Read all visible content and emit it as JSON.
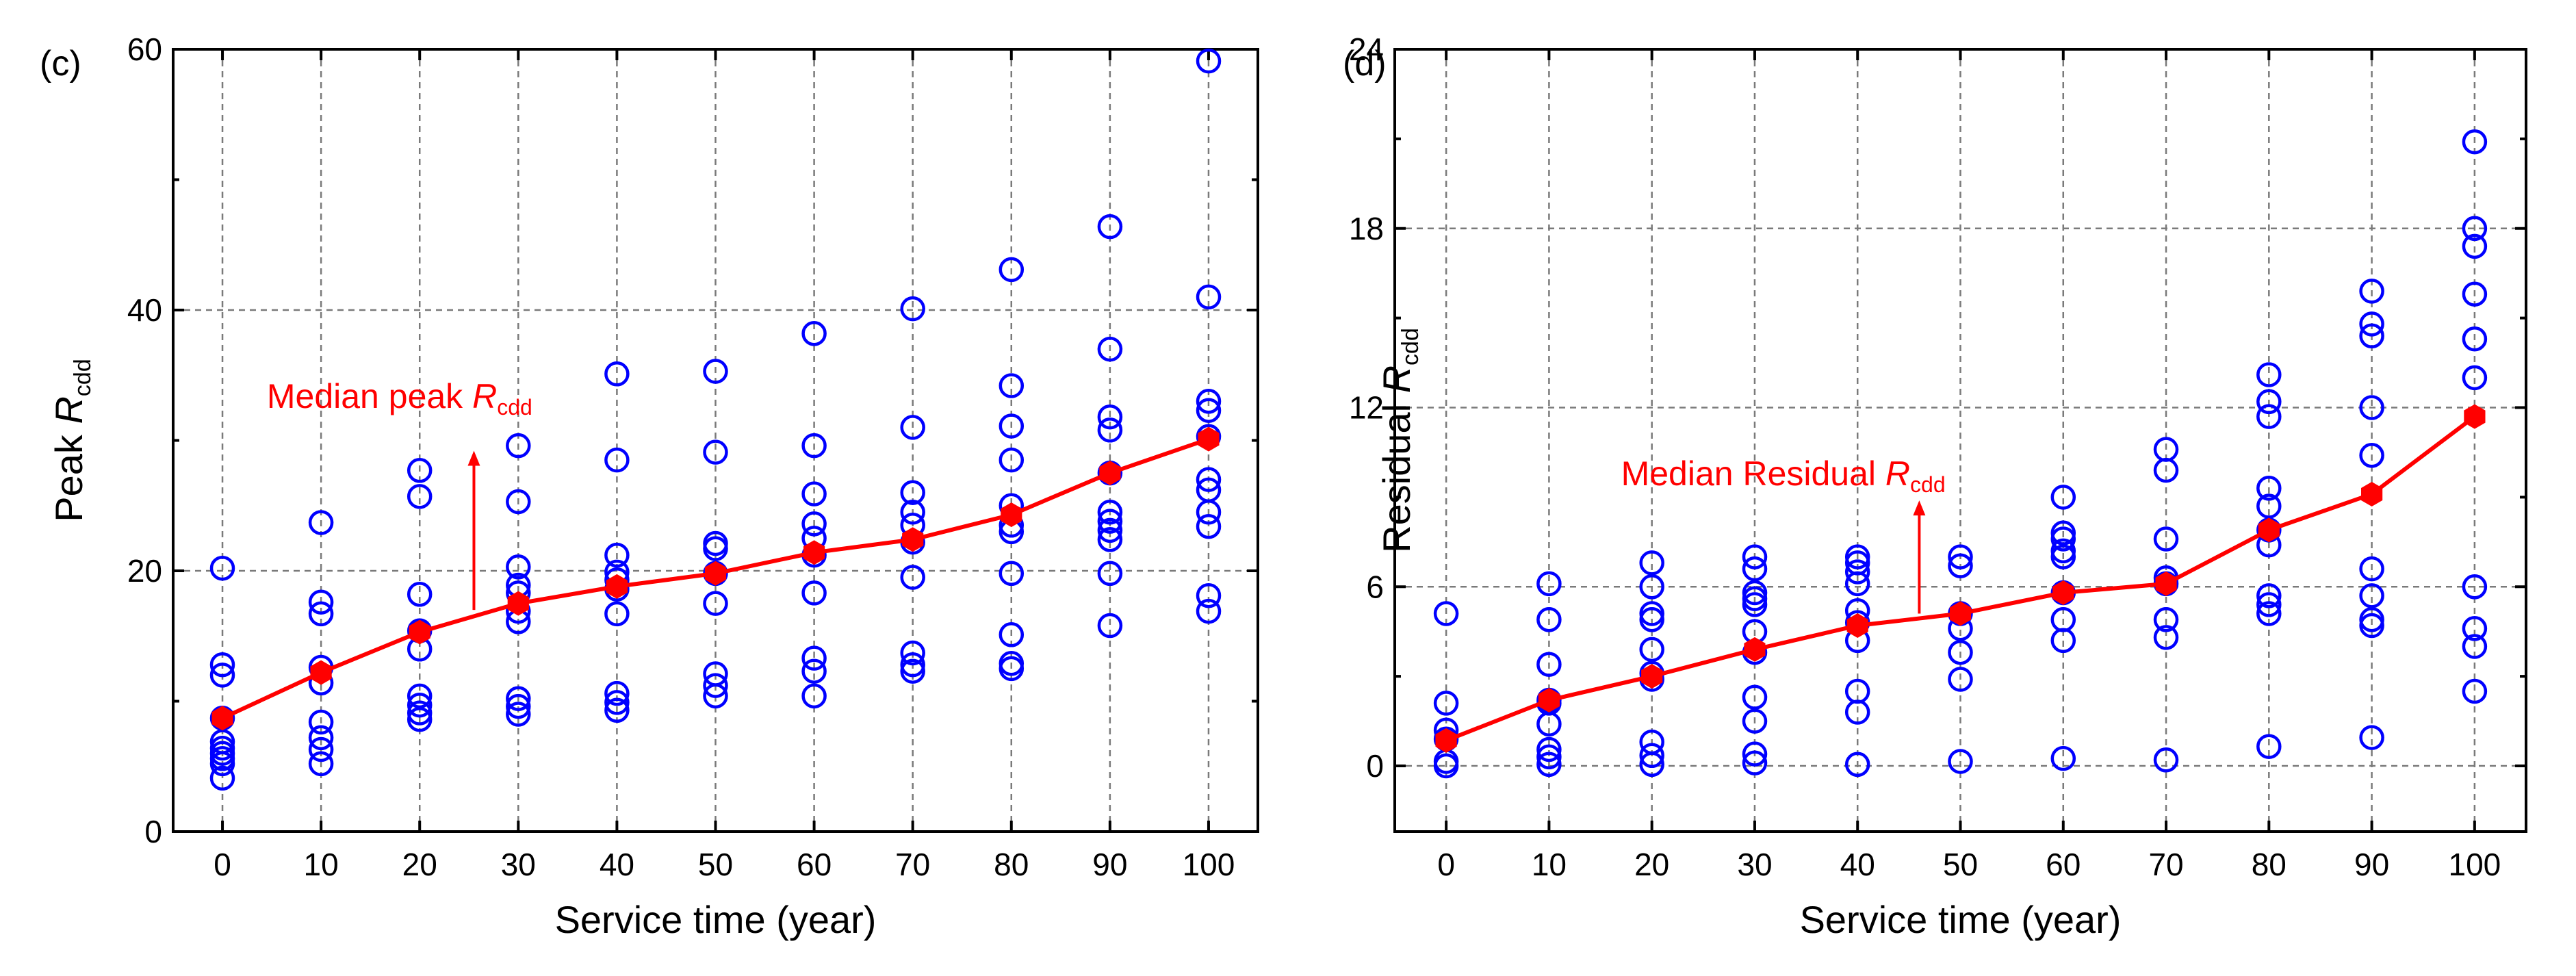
{
  "chart_data": [
    {
      "type": "scatter",
      "panel_label": "(c)",
      "xlabel": "Service time (year)",
      "ylabel": "Peak R",
      "ylabel_sub": "cdd",
      "xlim": [
        -5,
        105
      ],
      "ylim": [
        0,
        60
      ],
      "xticks": [
        0,
        10,
        20,
        30,
        40,
        50,
        60,
        70,
        80,
        90,
        100
      ],
      "yticks": [
        0,
        20,
        40,
        60
      ],
      "grid": true,
      "annotation": {
        "text": "Median peak R",
        "sub": "cdd",
        "x": 4.5,
        "y": 32.5,
        "arrow_from": [
          25.5,
          17.0
        ],
        "arrow_to": [
          25.5,
          29.0
        ]
      },
      "series": [
        {
          "kind": "scatter",
          "marker": "open-circle",
          "color": "#0000ff",
          "points": [
            [
              0,
              4.1
            ],
            [
              0,
              5.2
            ],
            [
              0,
              5.6
            ],
            [
              0,
              6.0
            ],
            [
              0,
              6.4
            ],
            [
              0,
              6.9
            ],
            [
              0,
              8.7
            ],
            [
              0,
              12.0
            ],
            [
              0,
              12.8
            ],
            [
              0,
              20.2
            ],
            [
              10,
              5.2
            ],
            [
              10,
              6.3
            ],
            [
              10,
              7.2
            ],
            [
              10,
              8.4
            ],
            [
              10,
              11.4
            ],
            [
              10,
              12.6
            ],
            [
              10,
              16.7
            ],
            [
              10,
              17.6
            ],
            [
              10,
              23.7
            ],
            [
              20,
              8.6
            ],
            [
              20,
              9.1
            ],
            [
              20,
              9.7
            ],
            [
              20,
              10.4
            ],
            [
              20,
              14.0
            ],
            [
              20,
              15.4
            ],
            [
              20,
              18.2
            ],
            [
              20,
              25.7
            ],
            [
              20,
              27.7
            ],
            [
              30,
              9.0
            ],
            [
              30,
              9.6
            ],
            [
              30,
              10.2
            ],
            [
              30,
              16.1
            ],
            [
              30,
              16.9
            ],
            [
              30,
              18.3
            ],
            [
              30,
              18.9
            ],
            [
              30,
              20.3
            ],
            [
              30,
              25.3
            ],
            [
              30,
              29.6
            ],
            [
              40,
              9.3
            ],
            [
              40,
              9.9
            ],
            [
              40,
              10.6
            ],
            [
              40,
              16.7
            ],
            [
              40,
              18.6
            ],
            [
              40,
              19.3
            ],
            [
              40,
              19.9
            ],
            [
              40,
              21.2
            ],
            [
              40,
              28.5
            ],
            [
              40,
              35.1
            ],
            [
              50,
              10.4
            ],
            [
              50,
              11.2
            ],
            [
              50,
              12.1
            ],
            [
              50,
              17.5
            ],
            [
              50,
              19.8
            ],
            [
              50,
              21.7
            ],
            [
              50,
              22.1
            ],
            [
              50,
              29.1
            ],
            [
              50,
              35.3
            ],
            [
              60,
              10.4
            ],
            [
              60,
              12.3
            ],
            [
              60,
              13.3
            ],
            [
              60,
              18.3
            ],
            [
              60,
              21.2
            ],
            [
              60,
              22.5
            ],
            [
              60,
              23.6
            ],
            [
              60,
              25.9
            ],
            [
              60,
              29.6
            ],
            [
              60,
              38.2
            ],
            [
              70,
              12.3
            ],
            [
              70,
              12.8
            ],
            [
              70,
              13.7
            ],
            [
              70,
              19.5
            ],
            [
              70,
              22.2
            ],
            [
              70,
              23.5
            ],
            [
              70,
              24.5
            ],
            [
              70,
              26.0
            ],
            [
              70,
              31.0
            ],
            [
              70,
              40.1
            ],
            [
              80,
              12.5
            ],
            [
              80,
              12.9
            ],
            [
              80,
              15.1
            ],
            [
              80,
              19.8
            ],
            [
              80,
              23.0
            ],
            [
              80,
              23.5
            ],
            [
              80,
              25.0
            ],
            [
              80,
              28.5
            ],
            [
              80,
              31.1
            ],
            [
              80,
              34.2
            ],
            [
              80,
              43.1
            ],
            [
              90,
              15.8
            ],
            [
              90,
              19.8
            ],
            [
              90,
              22.4
            ],
            [
              90,
              23.1
            ],
            [
              90,
              23.8
            ],
            [
              90,
              24.5
            ],
            [
              90,
              27.5
            ],
            [
              90,
              30.8
            ],
            [
              90,
              31.8
            ],
            [
              90,
              37.0
            ],
            [
              90,
              46.4
            ],
            [
              100,
              16.9
            ],
            [
              100,
              18.1
            ],
            [
              100,
              23.4
            ],
            [
              100,
              24.5
            ],
            [
              100,
              26.2
            ],
            [
              100,
              27.0
            ],
            [
              100,
              30.3
            ],
            [
              100,
              32.3
            ],
            [
              100,
              33.0
            ],
            [
              100,
              41.0
            ],
            [
              100,
              59.1
            ]
          ]
        },
        {
          "kind": "line",
          "marker": "filled-hexagon",
          "color": "#ff0000",
          "x": [
            0,
            10,
            20,
            30,
            40,
            50,
            60,
            70,
            80,
            90,
            100
          ],
          "values": [
            8.7,
            12.2,
            15.3,
            17.5,
            18.8,
            19.8,
            21.4,
            22.4,
            24.3,
            27.5,
            30.1
          ]
        }
      ]
    },
    {
      "type": "scatter",
      "panel_label": "(d)",
      "xlabel": "Service time (year)",
      "ylabel": "Residual R",
      "ylabel_sub": "cdd",
      "xlim": [
        -5,
        105
      ],
      "ylim": [
        -2.2,
        24
      ],
      "xticks": [
        0,
        10,
        20,
        30,
        40,
        50,
        60,
        70,
        80,
        90,
        100
      ],
      "yticks": [
        0,
        6,
        12,
        18,
        24
      ],
      "grid": true,
      "annotation": {
        "text": "Median Residual R",
        "sub": "cdd",
        "x": 17.0,
        "y": 9.4,
        "arrow_from": [
          46.0,
          5.1
        ],
        "arrow_to": [
          46.0,
          8.8
        ]
      },
      "series": [
        {
          "kind": "scatter",
          "marker": "open-circle",
          "color": "#0000ff",
          "points": [
            [
              0,
              0.0
            ],
            [
              0,
              0.15
            ],
            [
              0,
              0.9
            ],
            [
              0,
              1.2
            ],
            [
              0,
              2.1
            ],
            [
              0,
              5.1
            ],
            [
              10,
              0.05
            ],
            [
              10,
              0.3
            ],
            [
              10,
              0.55
            ],
            [
              10,
              1.4
            ],
            [
              10,
              2.1
            ],
            [
              10,
              2.2
            ],
            [
              10,
              3.4
            ],
            [
              10,
              4.9
            ],
            [
              10,
              6.1
            ],
            [
              20,
              0.05
            ],
            [
              20,
              0.35
            ],
            [
              20,
              0.8
            ],
            [
              20,
              2.9
            ],
            [
              20,
              3.1
            ],
            [
              20,
              3.9
            ],
            [
              20,
              4.9
            ],
            [
              20,
              5.1
            ],
            [
              20,
              6.0
            ],
            [
              20,
              6.8
            ],
            [
              30,
              0.1
            ],
            [
              30,
              0.4
            ],
            [
              30,
              1.5
            ],
            [
              30,
              2.3
            ],
            [
              30,
              3.8
            ],
            [
              30,
              4.5
            ],
            [
              30,
              5.4
            ],
            [
              30,
              5.6
            ],
            [
              30,
              5.8
            ],
            [
              30,
              6.6
            ],
            [
              30,
              7.0
            ],
            [
              40,
              0.05
            ],
            [
              40,
              1.8
            ],
            [
              40,
              2.5
            ],
            [
              40,
              4.2
            ],
            [
              40,
              4.8
            ],
            [
              40,
              5.2
            ],
            [
              40,
              6.1
            ],
            [
              40,
              6.5
            ],
            [
              40,
              6.8
            ],
            [
              40,
              7.0
            ],
            [
              50,
              0.15
            ],
            [
              50,
              2.9
            ],
            [
              50,
              3.8
            ],
            [
              50,
              4.6
            ],
            [
              50,
              5.1
            ],
            [
              50,
              6.7
            ],
            [
              50,
              7.0
            ],
            [
              60,
              0.25
            ],
            [
              60,
              4.2
            ],
            [
              60,
              4.9
            ],
            [
              60,
              5.8
            ],
            [
              60,
              7.0
            ],
            [
              60,
              7.2
            ],
            [
              60,
              7.6
            ],
            [
              60,
              7.8
            ],
            [
              60,
              9.0
            ],
            [
              70,
              0.2
            ],
            [
              70,
              4.3
            ],
            [
              70,
              4.9
            ],
            [
              70,
              6.1
            ],
            [
              70,
              6.3
            ],
            [
              70,
              7.6
            ],
            [
              70,
              9.9
            ],
            [
              70,
              10.6
            ],
            [
              80,
              0.65
            ],
            [
              80,
              5.1
            ],
            [
              80,
              5.4
            ],
            [
              80,
              5.7
            ],
            [
              80,
              7.4
            ],
            [
              80,
              7.9
            ],
            [
              80,
              8.7
            ],
            [
              80,
              9.3
            ],
            [
              80,
              11.7
            ],
            [
              80,
              12.2
            ],
            [
              80,
              13.1
            ],
            [
              90,
              0.95
            ],
            [
              90,
              4.7
            ],
            [
              90,
              4.9
            ],
            [
              90,
              5.7
            ],
            [
              90,
              6.6
            ],
            [
              90,
              10.4
            ],
            [
              90,
              12.0
            ],
            [
              90,
              14.4
            ],
            [
              90,
              14.8
            ],
            [
              90,
              15.9
            ],
            [
              100,
              2.5
            ],
            [
              100,
              4.0
            ],
            [
              100,
              4.6
            ],
            [
              100,
              6.0
            ],
            [
              100,
              13.0
            ],
            [
              100,
              14.3
            ],
            [
              100,
              15.8
            ],
            [
              100,
              17.4
            ],
            [
              100,
              18.0
            ],
            [
              100,
              20.9
            ]
          ]
        },
        {
          "kind": "line",
          "marker": "filled-hexagon",
          "color": "#ff0000",
          "x": [
            0,
            10,
            20,
            30,
            40,
            50,
            60,
            70,
            80,
            90,
            100
          ],
          "values": [
            0.85,
            2.2,
            3.0,
            3.9,
            4.7,
            5.1,
            5.8,
            6.1,
            7.9,
            9.1,
            11.7
          ]
        }
      ]
    }
  ]
}
